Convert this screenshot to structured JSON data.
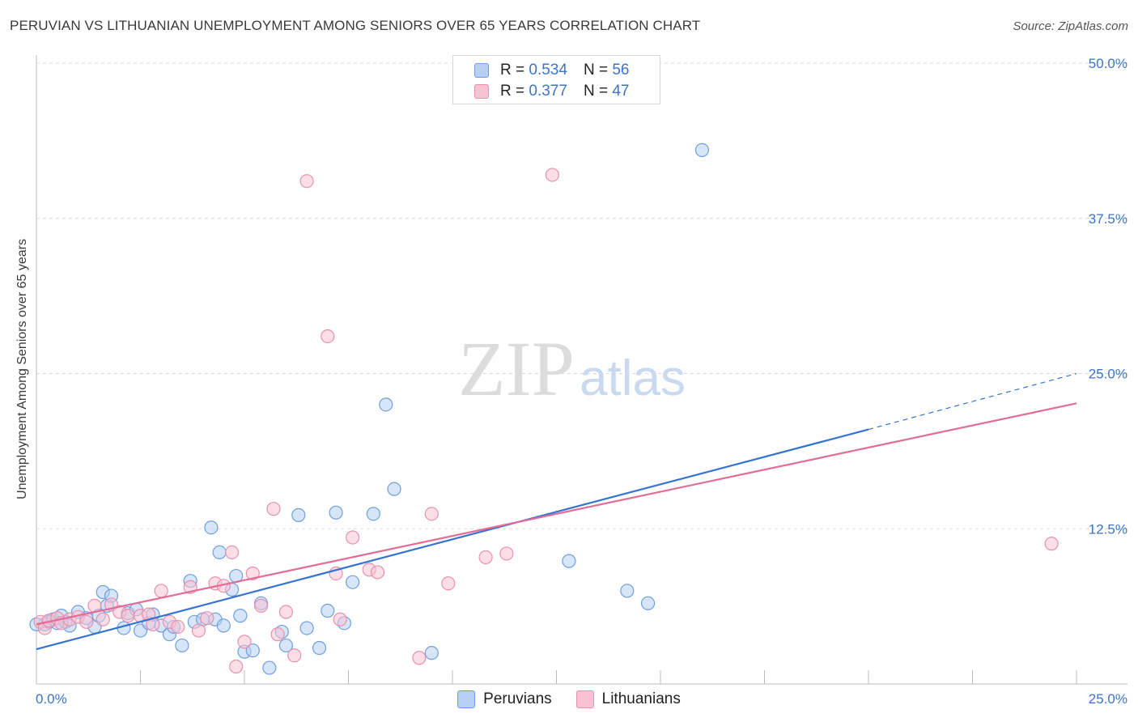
{
  "title": "PERUVIAN VS LITHUANIAN UNEMPLOYMENT AMONG SENIORS OVER 65 YEARS CORRELATION CHART",
  "source": "Source: ZipAtlas.com",
  "watermark": {
    "zip": "ZIP",
    "atlas": "atlas"
  },
  "colors": {
    "peruvians_fill": "#b7cff2",
    "peruvians_stroke": "#6f9fde",
    "peruvians_line": "#3474d0",
    "lithuanians_fill": "#f7c2d2",
    "lithuanians_stroke": "#e891ae",
    "lithuanians_line": "#e26b97",
    "tick_label": "#3b74c7",
    "grid": "#d8d8d8"
  },
  "legend": {
    "peruvians": {
      "r_label": "R =",
      "r_value": "0.534",
      "n_label": "N =",
      "n_value": "56"
    },
    "lithuanians": {
      "r_label": "R =",
      "r_value": "0.377",
      "n_label": "N =",
      "n_value": "47"
    }
  },
  "chart_data": {
    "type": "scatter",
    "title": "PERUVIAN VS LITHUANIAN UNEMPLOYMENT AMONG SENIORS OVER 65 YEARS CORRELATION CHART",
    "xlabel": "",
    "ylabel": "Unemployment Among Seniors over 65 years",
    "xlim": [
      0,
      25
    ],
    "ylim": [
      0,
      50
    ],
    "x_tick_labels": [
      "0.0%",
      "25.0%"
    ],
    "y_ticks": [
      12.5,
      25,
      37.5,
      50
    ],
    "y_tick_labels": [
      "12.5%",
      "25.0%",
      "37.5%",
      "50.0%"
    ],
    "grid": true,
    "legend_position": "bottom",
    "series": [
      {
        "name": "Peruvians",
        "points": [
          [
            0.2,
            4.8
          ],
          [
            0.3,
            5.0
          ],
          [
            0.4,
            5.2
          ],
          [
            0.5,
            4.9
          ],
          [
            0.6,
            5.5
          ],
          [
            0.7,
            5.0
          ],
          [
            0.8,
            4.7
          ],
          [
            1.0,
            5.8
          ],
          [
            1.2,
            5.3
          ],
          [
            1.4,
            4.6
          ],
          [
            1.5,
            5.5
          ],
          [
            1.6,
            7.4
          ],
          [
            1.7,
            6.3
          ],
          [
            1.8,
            7.1
          ],
          [
            2.1,
            4.5
          ],
          [
            2.2,
            5.7
          ],
          [
            2.4,
            6.0
          ],
          [
            2.5,
            4.3
          ],
          [
            2.7,
            4.9
          ],
          [
            2.8,
            5.6
          ],
          [
            3.0,
            4.7
          ],
          [
            3.2,
            4.0
          ],
          [
            3.3,
            4.6
          ],
          [
            3.5,
            3.1
          ],
          [
            3.7,
            8.3
          ],
          [
            3.8,
            5.0
          ],
          [
            4.0,
            5.2
          ],
          [
            4.2,
            12.6
          ],
          [
            4.3,
            5.2
          ],
          [
            4.4,
            10.6
          ],
          [
            4.5,
            4.7
          ],
          [
            4.7,
            7.6
          ],
          [
            4.8,
            8.7
          ],
          [
            4.9,
            5.5
          ],
          [
            5.0,
            2.6
          ],
          [
            5.2,
            2.7
          ],
          [
            5.4,
            6.5
          ],
          [
            5.6,
            1.3
          ],
          [
            5.9,
            4.2
          ],
          [
            6.0,
            3.1
          ],
          [
            6.3,
            13.6
          ],
          [
            6.5,
            4.5
          ],
          [
            6.8,
            2.9
          ],
          [
            7.0,
            5.9
          ],
          [
            7.2,
            13.8
          ],
          [
            7.4,
            4.9
          ],
          [
            7.6,
            8.2
          ],
          [
            8.1,
            13.7
          ],
          [
            8.4,
            22.5
          ],
          [
            8.6,
            15.7
          ],
          [
            9.5,
            2.5
          ],
          [
            12.8,
            9.9
          ],
          [
            14.2,
            7.5
          ],
          [
            14.7,
            6.5
          ],
          [
            16.0,
            43.0
          ],
          [
            0.0,
            4.8
          ]
        ]
      },
      {
        "name": "Lithuanians",
        "points": [
          [
            0.1,
            5.0
          ],
          [
            0.2,
            4.5
          ],
          [
            0.3,
            5.1
          ],
          [
            0.5,
            5.3
          ],
          [
            0.6,
            4.9
          ],
          [
            0.8,
            5.2
          ],
          [
            1.0,
            5.4
          ],
          [
            1.2,
            5.0
          ],
          [
            1.4,
            6.3
          ],
          [
            1.6,
            5.2
          ],
          [
            1.8,
            6.4
          ],
          [
            2.0,
            5.8
          ],
          [
            2.2,
            5.5
          ],
          [
            2.5,
            5.5
          ],
          [
            2.7,
            5.6
          ],
          [
            2.8,
            4.8
          ],
          [
            3.0,
            7.5
          ],
          [
            3.2,
            5.0
          ],
          [
            3.4,
            4.6
          ],
          [
            3.7,
            7.8
          ],
          [
            3.9,
            4.3
          ],
          [
            4.1,
            5.3
          ],
          [
            4.3,
            8.1
          ],
          [
            4.5,
            7.9
          ],
          [
            4.7,
            10.6
          ],
          [
            4.8,
            1.4
          ],
          [
            5.0,
            3.4
          ],
          [
            5.2,
            8.9
          ],
          [
            5.4,
            6.3
          ],
          [
            5.7,
            14.1
          ],
          [
            5.8,
            4.0
          ],
          [
            6.0,
            5.8
          ],
          [
            6.2,
            2.3
          ],
          [
            6.5,
            40.5
          ],
          [
            7.0,
            28.0
          ],
          [
            7.2,
            8.9
          ],
          [
            7.3,
            5.2
          ],
          [
            7.6,
            11.8
          ],
          [
            8.0,
            9.2
          ],
          [
            8.2,
            9.0
          ],
          [
            9.2,
            2.1
          ],
          [
            9.5,
            13.7
          ],
          [
            9.9,
            8.1
          ],
          [
            10.8,
            10.2
          ],
          [
            11.3,
            10.5
          ],
          [
            12.4,
            41.0
          ],
          [
            24.4,
            11.3
          ]
        ]
      }
    ],
    "trend_lines": [
      {
        "name": "Peruvians",
        "x": [
          0,
          20
        ],
        "y": [
          2.8,
          20.5
        ],
        "dashed_extension_to": [
          25,
          25.0
        ]
      },
      {
        "name": "Lithuanians",
        "x": [
          0,
          25
        ],
        "y": [
          4.8,
          22.6
        ]
      }
    ]
  }
}
